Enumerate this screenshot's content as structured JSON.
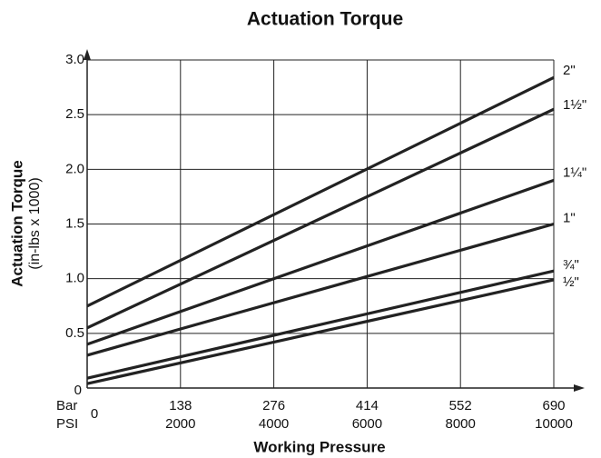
{
  "chart_data": {
    "type": "line",
    "title": "Actuation Torque",
    "x_label": "Working Pressure",
    "y_label": [
      "Actuation Torque",
      "(in-lbs x 1000)"
    ],
    "x_unit_label": "PSI",
    "x2_unit_label": "Bar",
    "x": [
      0,
      10000
    ],
    "xlim": [
      0,
      10000
    ],
    "xticks": [
      0,
      2000,
      4000,
      6000,
      8000,
      10000
    ],
    "x2lim": [
      0,
      690
    ],
    "x2ticks": [
      138,
      276,
      414,
      552,
      690
    ],
    "ylim": [
      0,
      3
    ],
    "yticks": [
      0,
      0.5,
      {
        "value": 1,
        "label": "1.0"
      },
      1.5,
      {
        "value": 2,
        "label": "2.0"
      },
      2.5,
      {
        "value": 3,
        "label": "3.0"
      }
    ],
    "grid": true,
    "series": [
      {
        "name": "2\"",
        "color": "#222222",
        "values": [
          0.75,
          2.84
        ]
      },
      {
        "name": "1½\"",
        "color": "#222222",
        "values": [
          0.55,
          2.55
        ]
      },
      {
        "name": "1¼\"",
        "color": "#222222",
        "values": [
          0.4,
          1.9
        ]
      },
      {
        "name": "1\"",
        "color": "#222222",
        "values": [
          0.3,
          1.5
        ]
      },
      {
        "name": "¾\"",
        "color": "#222222",
        "values": [
          0.09,
          1.07
        ]
      },
      {
        "name": "½\"",
        "color": "#222222",
        "values": [
          0.04,
          0.99
        ]
      }
    ]
  }
}
